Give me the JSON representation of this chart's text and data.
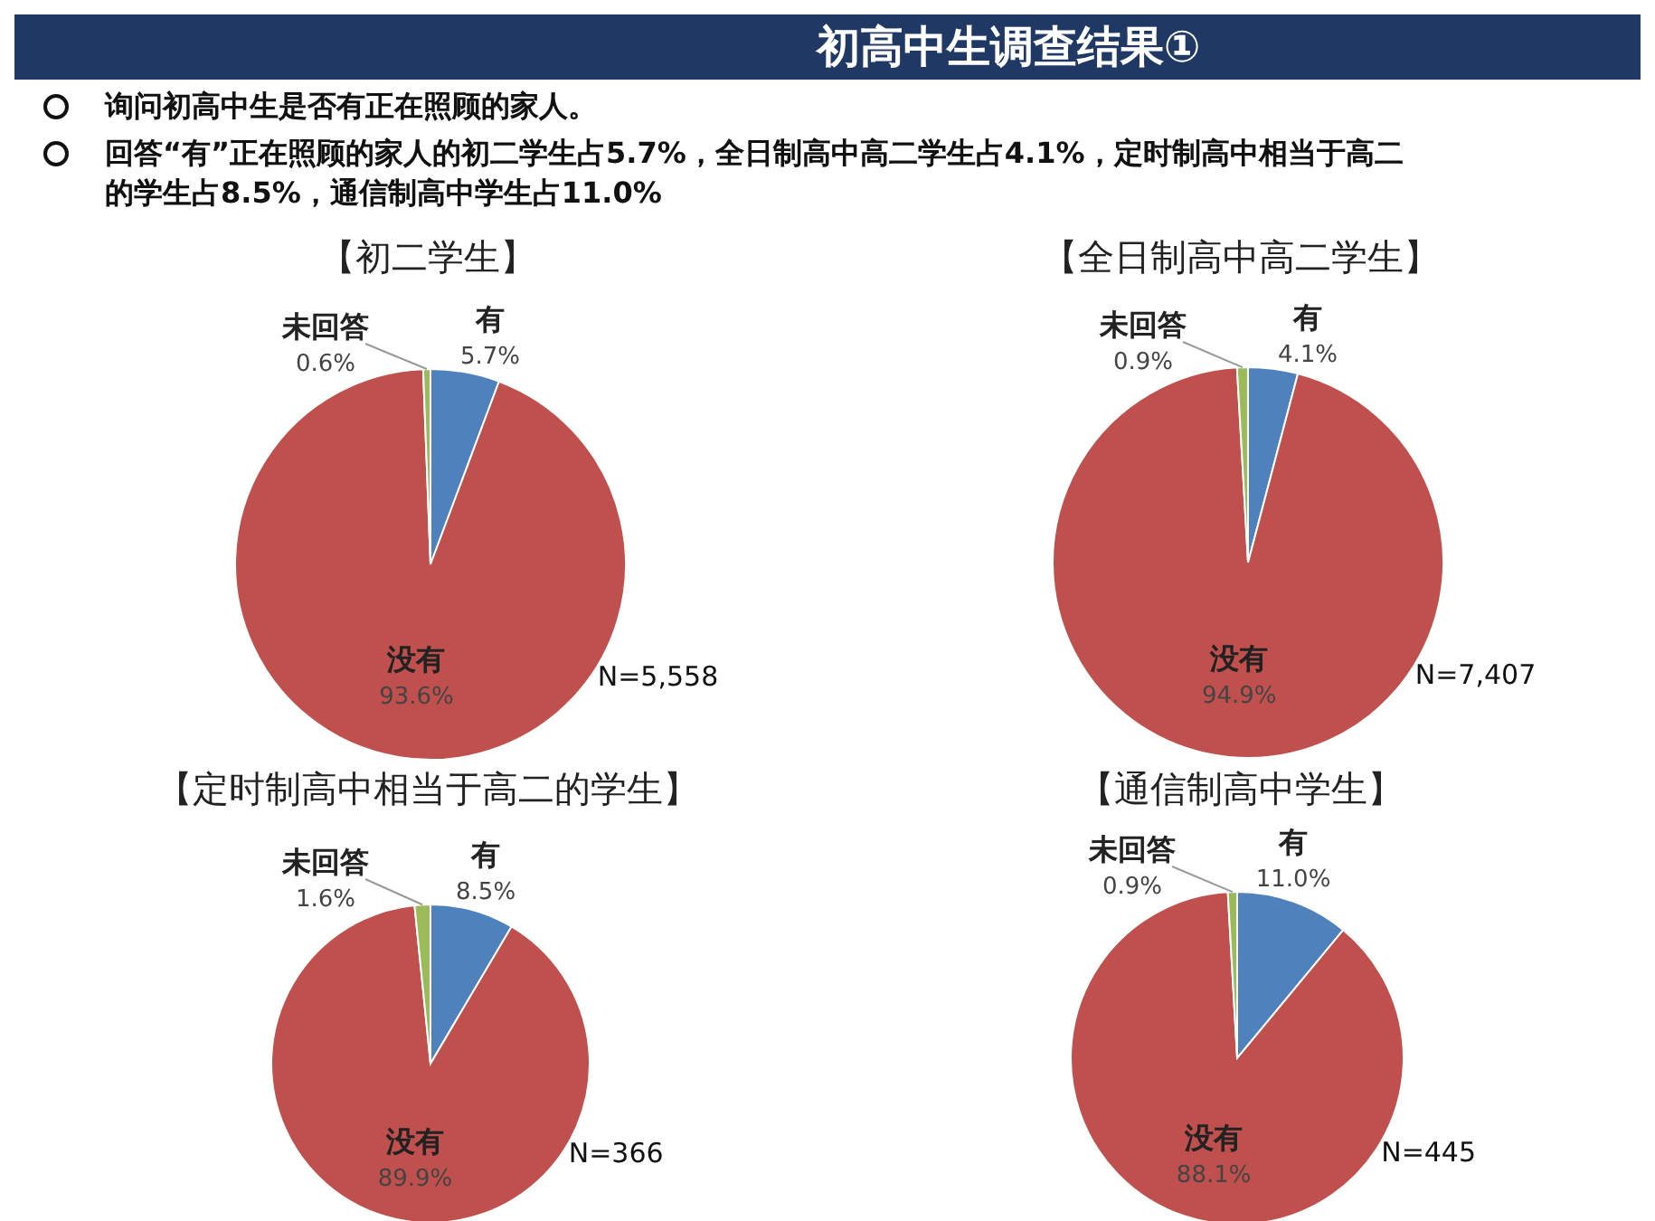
{
  "chart_data": [
    {
      "type": "other",
      "title": "初高中生调查结果①",
      "annotations": [
        "询问初高中生是否有正在照顾的家人。",
        "回答“有”正在照顾的家人的初二学生占5.7%，全日制高中高二学生占4.1%，定时制高中相当于高二的学生占8.5%，通信制高中学生占11.0%"
      ]
    },
    {
      "type": "pie",
      "title": "【初二学生】",
      "categories": [
        "有",
        "没有",
        "未回答"
      ],
      "values": [
        5.7,
        93.6,
        0.6
      ],
      "value_labels": [
        "5.7%",
        "93.6%",
        "0.6%"
      ],
      "colors": [
        "#4f81bd",
        "#c0504d",
        "#9bbb59"
      ],
      "annotations": [
        "N=5,558"
      ]
    },
    {
      "type": "pie",
      "title": "【全日制高中高二学生】",
      "categories": [
        "有",
        "没有",
        "未回答"
      ],
      "values": [
        4.1,
        94.9,
        0.9
      ],
      "value_labels": [
        "4.1%",
        "94.9%",
        "0.9%"
      ],
      "colors": [
        "#4f81bd",
        "#c0504d",
        "#9bbb59"
      ],
      "annotations": [
        "N=7,407"
      ]
    },
    {
      "type": "pie",
      "title": "【定时制高中相当于高二的学生】",
      "categories": [
        "有",
        "没有",
        "未回答"
      ],
      "values": [
        8.5,
        89.9,
        1.6
      ],
      "value_labels": [
        "8.5%",
        "89.9%",
        "1.6%"
      ],
      "colors": [
        "#4f81bd",
        "#c0504d",
        "#9bbb59"
      ],
      "annotations": [
        "N=366"
      ]
    },
    {
      "type": "pie",
      "title": "【通信制高中学生】",
      "categories": [
        "有",
        "没有",
        "未回答"
      ],
      "values": [
        11.0,
        88.1,
        0.9
      ],
      "value_labels": [
        "11.0%",
        "88.1%",
        "0.9%"
      ],
      "colors": [
        "#4f81bd",
        "#c0504d",
        "#9bbb59"
      ],
      "annotations": [
        "N=445"
      ]
    }
  ]
}
